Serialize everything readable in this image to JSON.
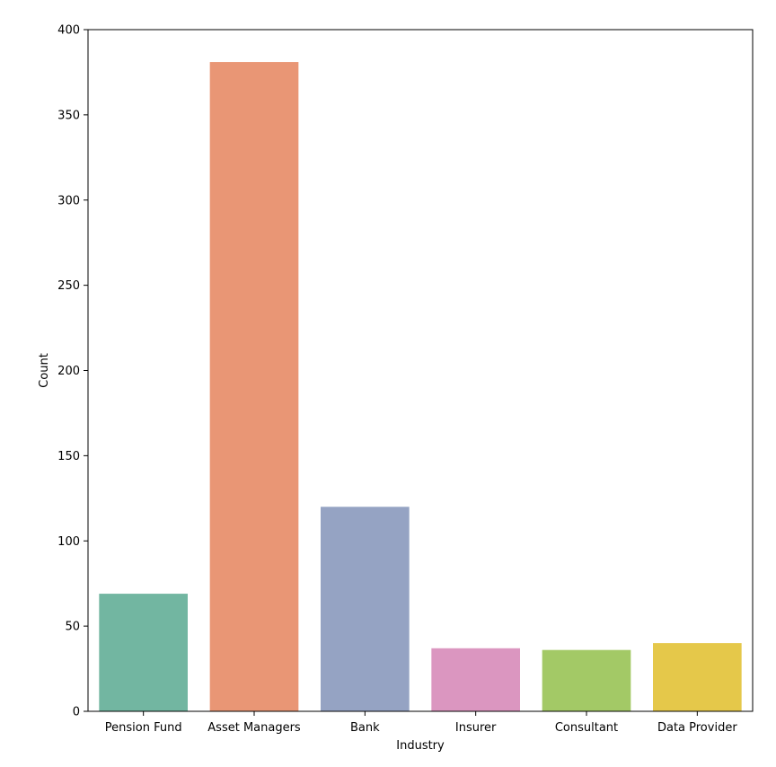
{
  "chart_data": {
    "type": "bar",
    "xlabel": "Industry",
    "ylabel": "Count",
    "categories": [
      "Pension Fund",
      "Asset Managers",
      "Bank",
      "Insurer",
      "Consultant",
      "Data Provider"
    ],
    "values": [
      69,
      381,
      120,
      37,
      36,
      40
    ],
    "colors": [
      "#72b6a1",
      "#e99675",
      "#95a3c3",
      "#db96c0",
      "#a3c966",
      "#e5c84a"
    ],
    "ylim": [
      0,
      400
    ],
    "yticks": [
      0,
      50,
      100,
      150,
      200,
      250,
      300,
      350,
      400
    ],
    "grid": false,
    "legend": "none"
  }
}
